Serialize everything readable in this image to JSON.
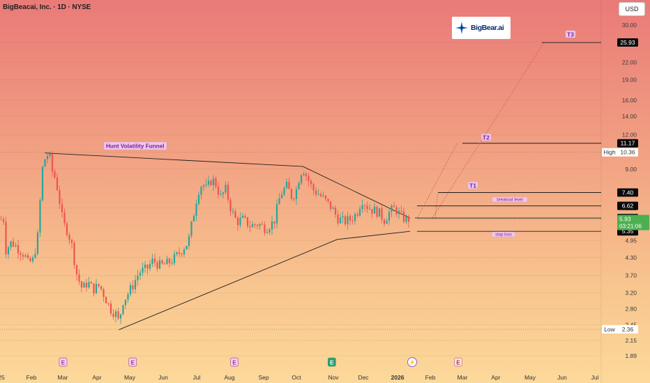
{
  "header": {
    "title": "BigBeacai, Inc. · 1D · NYSE",
    "currency": "USD"
  },
  "logo": {
    "text": "BigBear.ai"
  },
  "chart_data": {
    "type": "line",
    "title": "BigBeacai, Inc. · 1D · NYSE",
    "price_scale": "log",
    "yaxis_ticks": [
      30.0,
      26.0,
      22.0,
      19.0,
      16.0,
      14.0,
      12.0,
      9.0,
      6.5,
      4.95,
      4.3,
      3.7,
      3.2,
      2.8,
      2.45,
      2.15,
      1.89
    ],
    "xaxis_ticks": [
      "25",
      "Feb",
      "Mar",
      "Apr",
      "May",
      "Jun",
      "Jul",
      "Aug",
      "Sep",
      "Oct",
      "Nov",
      "Dec",
      "2026",
      "Feb",
      "Mar",
      "Apr",
      "May",
      "Jun",
      "Jul"
    ],
    "price_series": {
      "name": "BBAI",
      "x": [
        "2025-01-01",
        "2025-01-08",
        "2025-01-15",
        "2025-01-20",
        "2025-01-23",
        "2025-01-28",
        "2025-02-02",
        "2025-02-05",
        "2025-02-08",
        "2025-02-10",
        "2025-02-12",
        "2025-02-14",
        "2025-02-18",
        "2025-02-21",
        "2025-02-25",
        "2025-03-01",
        "2025-03-05",
        "2025-03-10",
        "2025-03-15",
        "2025-03-20",
        "2025-03-25",
        "2025-03-31",
        "2025-04-05",
        "2025-04-10",
        "2025-04-15",
        "2025-04-18",
        "2025-04-22",
        "2025-04-25",
        "2025-05-01",
        "2025-05-07",
        "2025-05-14",
        "2025-05-20",
        "2025-05-27",
        "2025-06-03",
        "2025-06-10",
        "2025-06-16",
        "2025-06-22",
        "2025-06-27",
        "2025-07-01",
        "2025-07-05",
        "2025-07-09",
        "2025-07-14",
        "2025-07-18",
        "2025-07-22",
        "2025-07-27",
        "2025-08-01",
        "2025-08-06",
        "2025-08-12",
        "2025-08-19",
        "2025-08-26",
        "2025-09-02",
        "2025-09-10",
        "2025-09-16",
        "2025-09-22",
        "2025-09-27",
        "2025-10-01",
        "2025-10-04",
        "2025-10-07",
        "2025-10-11",
        "2025-10-16",
        "2025-10-22",
        "2025-10-28",
        "2025-11-03",
        "2025-11-08",
        "2025-11-14",
        "2025-11-20",
        "2025-11-26",
        "2025-12-01",
        "2025-12-06",
        "2025-12-11",
        "2025-12-16",
        "2025-12-22",
        "2025-12-27",
        "2026-01-01",
        "2026-01-06",
        "2026-01-11",
        "2026-01-15"
      ],
      "close": [
        4.5,
        4.9,
        4.6,
        4.4,
        4.1,
        4.2,
        5.3,
        8.8,
        9.8,
        10.1,
        10.3,
        9.0,
        8.3,
        7.2,
        5.7,
        5.4,
        4.8,
        3.7,
        3.3,
        3.5,
        3.3,
        3.4,
        3.1,
        2.8,
        2.7,
        2.5,
        3.0,
        3.1,
        3.4,
        3.8,
        3.9,
        4.2,
        4.0,
        4.1,
        4.3,
        4.6,
        4.9,
        6.2,
        7.5,
        8.0,
        7.6,
        8.3,
        7.9,
        7.1,
        7.6,
        6.4,
        5.8,
        5.9,
        5.6,
        5.7,
        5.5,
        5.8,
        7.3,
        7.8,
        7.1,
        7.6,
        8.6,
        9.1,
        8.4,
        7.6,
        7.3,
        6.9,
        6.5,
        6.0,
        5.8,
        5.9,
        6.2,
        7.0,
        6.6,
        6.4,
        6.3,
        5.9,
        6.3,
        6.5,
        6.1,
        5.9,
        5.93
      ]
    },
    "last_price": 5.93,
    "last_price_countdown": "03:21:06",
    "high": {
      "label": "High",
      "value": 10.36
    },
    "low": {
      "label": "Low",
      "value": 2.36
    },
    "levels": [
      {
        "label": "T3",
        "value": 25.93
      },
      {
        "label": "T2",
        "value": 11.17
      },
      {
        "label": "T1",
        "value": 7.4
      },
      {
        "label": "breakout level",
        "value": 6.62
      },
      {
        "label": "",
        "value": 5.98
      },
      {
        "label": "stop loss",
        "value": 5.35
      }
    ],
    "annotations": [
      {
        "text": "Hunt Volatility Funnel"
      }
    ],
    "funnel": {
      "upper": [
        [
          "2025-02-08",
          10.3
        ],
        [
          "2025-10-07",
          9.2
        ],
        [
          "2026-01-15",
          5.98
        ]
      ],
      "lower": [
        [
          "2025-04-18",
          2.35
        ],
        [
          "2025-11-08",
          5.0
        ],
        [
          "2026-01-15",
          5.35
        ]
      ]
    },
    "projections": [
      {
        "from": [
          "2026-01-22",
          6.0
        ],
        "to": [
          "2026-02-28",
          11.17
        ]
      },
      {
        "from": [
          "2026-02-05",
          6.0
        ],
        "to": [
          "2026-05-20",
          25.93
        ]
      }
    ],
    "events": [
      {
        "x": "2025-02-25",
        "label": "E",
        "kind": "earnings"
      },
      {
        "x": "2025-05-01",
        "label": "E",
        "kind": "earnings"
      },
      {
        "x": "2025-08-04",
        "label": "E",
        "kind": "earnings"
      },
      {
        "x": "2025-11-03",
        "label": "E",
        "kind": "earnings-green"
      },
      {
        "x": "2026-01-17",
        "label": "⚡",
        "kind": "news"
      },
      {
        "x": "2026-03-01",
        "label": "E",
        "kind": "earnings-future"
      }
    ],
    "colors": {
      "up": "#26a69a",
      "down": "#ef5350",
      "line": "#1f1f1f",
      "last_price": "#4caf50",
      "label_bg": "#f0c8e8",
      "label_text": "#7b1fa2"
    }
  }
}
